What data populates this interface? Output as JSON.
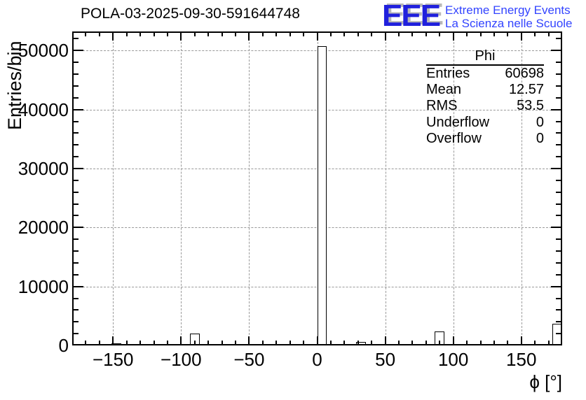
{
  "page": {
    "title": "POLA-03-2025-09-30-591644748"
  },
  "logo": {
    "acronym": "EEE",
    "line1": "Extreme Energy Events",
    "line2": "La Scienza nelle Scuole",
    "blue": "#2020dd",
    "text_blue": "#3344ff",
    "shadow_gray": "#b8b8b8"
  },
  "stats_box": {
    "title": "Phi",
    "rows": [
      {
        "label": "Entries",
        "value": "60698"
      },
      {
        "label": "Mean",
        "value": "12.57"
      },
      {
        "label": "RMS",
        "value": "53.5"
      },
      {
        "label": "Underflow",
        "value": "0"
      },
      {
        "label": "Overflow",
        "value": "0"
      }
    ]
  },
  "chart_data": {
    "type": "bar",
    "title": "POLA-03-2025-09-30-591644748",
    "xlabel": "ϕ [°]",
    "ylabel": "Entries/bin",
    "xlim": [
      -180,
      180
    ],
    "ylim": [
      0,
      53240
    ],
    "grid": true,
    "grid_style": "dashed-gray",
    "bin_width_deg": 7.2,
    "x_major_ticks": [
      -150,
      -100,
      -50,
      0,
      50,
      100,
      150
    ],
    "x_minor_step": 10,
    "y_major_ticks": [
      0,
      10000,
      20000,
      30000,
      40000,
      50000
    ],
    "y_minor_step": 2000,
    "bars": [
      {
        "x0": -151.2,
        "x1": -144.0,
        "count": 350
      },
      {
        "x0": -144.0,
        "x1": -136.8,
        "count": 200
      },
      {
        "x0": -93.6,
        "x1": -86.4,
        "count": 2050
      },
      {
        "x0": -50.4,
        "x1": -43.2,
        "count": 250
      },
      {
        "x0": -43.2,
        "x1": -36.0,
        "count": 280
      },
      {
        "x0": 0.0,
        "x1": 7.2,
        "count": 50800
      },
      {
        "x0": 21.6,
        "x1": 28.8,
        "count": 250
      },
      {
        "x0": 28.8,
        "x1": 36.0,
        "count": 600
      },
      {
        "x0": 86.4,
        "x1": 93.6,
        "count": 2350
      },
      {
        "x0": 136.8,
        "x1": 144.0,
        "count": 250
      },
      {
        "x0": 172.8,
        "x1": 180.0,
        "count": 3700
      }
    ]
  }
}
